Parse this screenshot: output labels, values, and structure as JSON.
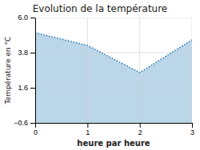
{
  "chart_data": {
    "type": "area",
    "title": "Evolution de la température",
    "x_label": "heure par heure",
    "y_label": "Température en °C",
    "x": [
      0,
      1,
      2,
      3
    ],
    "values": [
      5.05,
      4.25,
      2.55,
      4.6
    ],
    "xlim": [
      0,
      3
    ],
    "ylim": [
      -0.6,
      6.0
    ],
    "xticks": [
      0,
      1,
      2,
      3
    ],
    "yticks": [
      {
        "value": -0.6,
        "label": "−0.6"
      },
      1.6,
      3.8,
      {
        "value": 6.0,
        "label": "6.0"
      }
    ],
    "line_style": "dotted",
    "grid": true
  }
}
